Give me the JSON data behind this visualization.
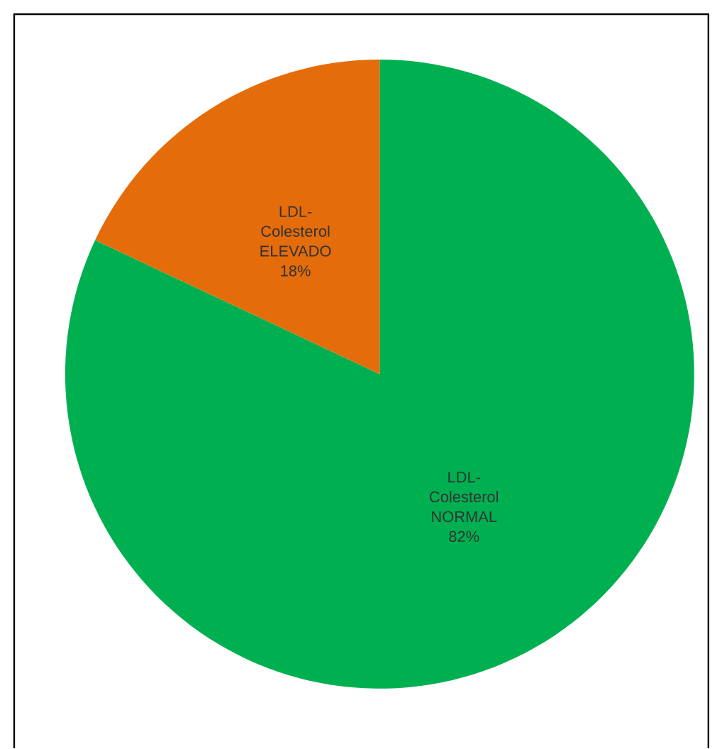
{
  "chart_data": {
    "type": "pie",
    "categories": [
      "LDL-Colesterol NORMAL",
      "LDL-Colesterol ELEVADO"
    ],
    "values": [
      82,
      18
    ],
    "colors": [
      "#00b050",
      "#e46c0a"
    ],
    "value_labels": [
      "82%",
      "18%"
    ]
  }
}
